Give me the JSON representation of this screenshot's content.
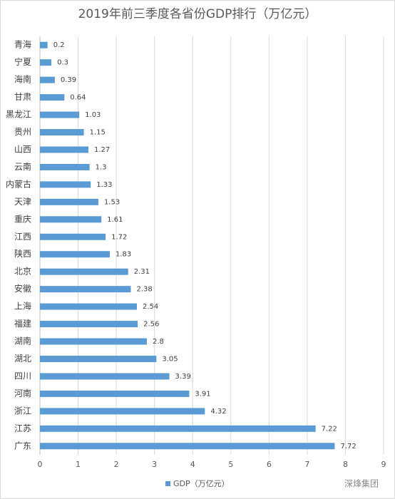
{
  "chart_data": {
    "type": "hbar",
    "title": "2019年前三季度各省份GDP排行（万亿元）",
    "categories": [
      "青海",
      "宁夏",
      "海南",
      "甘肃",
      "黑龙江",
      "贵州",
      "山西",
      "云南",
      "内蒙古",
      "天津",
      "重庆",
      "江西",
      "陕西",
      "北京",
      "安徽",
      "上海",
      "福建",
      "湖南",
      "湖北",
      "四川",
      "河南",
      "浙江",
      "江苏",
      "广东"
    ],
    "series": [
      {
        "name": "GDP（万亿元）",
        "color": "#5b9bd5",
        "values": [
          0.2,
          0.3,
          0.39,
          0.64,
          1.03,
          1.15,
          1.27,
          1.3,
          1.33,
          1.53,
          1.61,
          1.72,
          1.83,
          2.31,
          2.38,
          2.54,
          2.56,
          2.8,
          3.05,
          3.39,
          3.91,
          4.32,
          7.22,
          7.72
        ]
      }
    ],
    "xlim": [
      0,
      9
    ],
    "xticks": [
      0,
      1,
      2,
      3,
      4,
      5,
      6,
      7,
      8,
      9
    ],
    "grid": true,
    "legend": "bottom",
    "watermark": "深烽集团"
  }
}
